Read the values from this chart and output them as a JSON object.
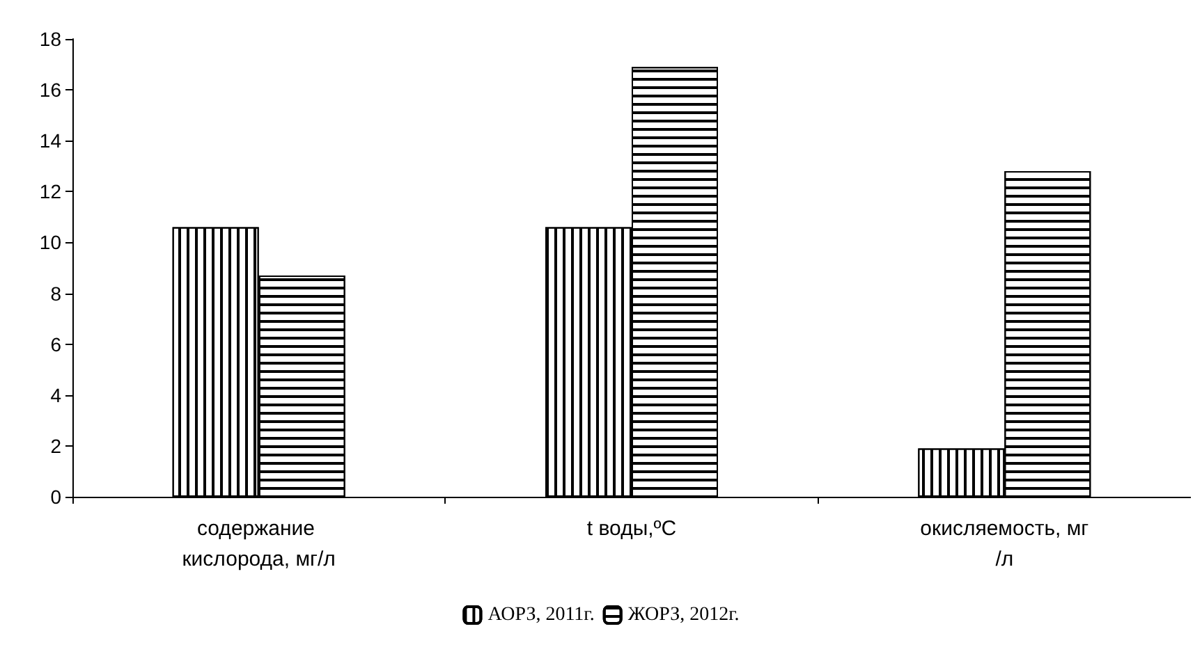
{
  "chart_data": {
    "type": "bar",
    "categories": [
      "содержание кислорода, мг/л",
      "t воды,ºC",
      "окисляемость, мг/л"
    ],
    "series": [
      {
        "name": "АОРЗ, 2011г.",
        "color": "#ffffff",
        "values": [
          10.6,
          10.6,
          1.9
        ]
      },
      {
        "name": "ЖОРЗ, 2012г.",
        "color": "#ffffff",
        "values": [
          8.7,
          16.9,
          12.8
        ]
      }
    ],
    "ylim": [
      0,
      18
    ],
    "yticks": [
      0,
      2,
      4,
      6,
      8,
      10,
      12,
      14,
      16,
      18
    ],
    "grid": false,
    "legend": "bottom"
  }
}
